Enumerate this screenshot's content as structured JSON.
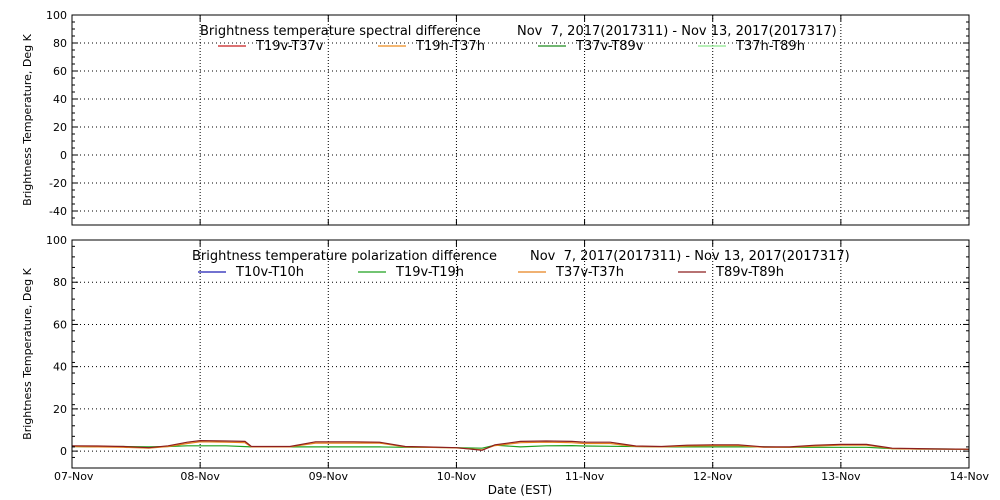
{
  "x_axis": {
    "label": "Date (EST)",
    "ticks": [
      "07-Nov",
      "08-Nov",
      "09-Nov",
      "10-Nov",
      "11-Nov",
      "12-Nov",
      "13-Nov",
      "14-Nov"
    ]
  },
  "chart_data": [
    {
      "id": "spectral",
      "type": "line",
      "title": "Brightness temperature spectral difference",
      "date_range": "Nov  7, 2017(2017311) - Nov 13, 2017(2017317)",
      "ylabel": "Brightness Temperature, Deg K",
      "ylim": [
        -50,
        100
      ],
      "yticks": [
        -40,
        -20,
        0,
        20,
        40,
        60,
        80,
        100
      ],
      "xlim": [
        0,
        7
      ],
      "grid": true,
      "legend_position": "top",
      "series": [
        {
          "name": "T19v-T37v",
          "color": "#c81e1e",
          "x": [],
          "y": []
        },
        {
          "name": "T19h-T37h",
          "color": "#ee8c1e",
          "x": [],
          "y": []
        },
        {
          "name": "T37v-T89v",
          "color": "#1e8c1e",
          "x": [],
          "y": []
        },
        {
          "name": "T37h-T89h",
          "color": "#8ce68c",
          "x": [],
          "y": []
        }
      ]
    },
    {
      "id": "polarization",
      "type": "line",
      "title": "Brightness temperature polarization difference",
      "date_range": "Nov  7, 2017(2017311) - Nov 13, 2017(2017317)",
      "ylabel": "Brightness Temperature, Deg K",
      "ylim": [
        -8,
        100
      ],
      "yticks": [
        0,
        20,
        40,
        60,
        80,
        100
      ],
      "xlim": [
        0,
        7
      ],
      "grid": true,
      "legend_position": "top",
      "series": [
        {
          "name": "T10v-T10h",
          "color": "#1e1eb4",
          "x": [],
          "y": []
        },
        {
          "name": "T19v-T19h",
          "color": "#1ea01e",
          "x": [
            0,
            0.2,
            0.4,
            0.6,
            0.75,
            0.9,
            1.0,
            1.2,
            1.4,
            1.55,
            1.7,
            1.9,
            2.0,
            2.2,
            2.4,
            2.6,
            2.75,
            3.0,
            3.2,
            3.3,
            3.5,
            3.7,
            3.9,
            4.0,
            4.2,
            4.4,
            4.6,
            4.8,
            5.0,
            5.2,
            5.4,
            5.6,
            5.8,
            6.0,
            6.2,
            6.4,
            6.6,
            6.8,
            7.0
          ],
          "y": [
            2.2,
            2.0,
            2.2,
            2.0,
            2.2,
            2.5,
            2.5,
            2.5,
            2.0,
            2.0,
            2.0,
            2.0,
            2.0,
            2.0,
            2.0,
            1.8,
            1.8,
            1.6,
            1.4,
            2.8,
            2.0,
            2.5,
            2.6,
            2.4,
            2.3,
            2.2,
            2.0,
            2.0,
            2.0,
            2.0,
            2.0,
            1.8,
            1.8,
            1.8,
            1.8,
            1.2,
            1.0,
            1.0,
            0.9
          ]
        },
        {
          "name": "T37v-T37h",
          "color": "#e6821e",
          "x": [
            0,
            0.2,
            0.4,
            0.6,
            0.75,
            0.9,
            1.0,
            1.2,
            1.35,
            1.4,
            1.55,
            1.7,
            1.9,
            2.0,
            2.2,
            2.4,
            2.6,
            2.75,
            3.0,
            3.2,
            3.3,
            3.5,
            3.7,
            3.9,
            4.0,
            4.2,
            4.4,
            4.6,
            4.8,
            5.0,
            5.2,
            5.4,
            5.6,
            5.8,
            6.0,
            6.2,
            6.4,
            6.6,
            6.8,
            7.0
          ],
          "y": [
            2.2,
            2.0,
            1.8,
            1.4,
            2.2,
            3.6,
            4.4,
            4.2,
            4.0,
            2.0,
            2.0,
            2.0,
            3.8,
            3.8,
            3.8,
            3.8,
            2.0,
            1.8,
            1.5,
            0.6,
            2.6,
            4.0,
            4.2,
            4.0,
            3.6,
            3.6,
            2.2,
            2.0,
            2.4,
            2.6,
            2.6,
            1.8,
            1.8,
            2.4,
            2.8,
            2.8,
            1.2,
            1.0,
            0.9,
            0.8
          ]
        },
        {
          "name": "T89v-T89h",
          "color": "#8c1e1e",
          "x": [
            0,
            0.2,
            0.4,
            0.6,
            0.75,
            0.9,
            1.0,
            1.2,
            1.35,
            1.4,
            1.55,
            1.7,
            1.9,
            2.0,
            2.2,
            2.4,
            2.6,
            2.75,
            3.0,
            3.2,
            3.3,
            3.5,
            3.7,
            3.9,
            4.0,
            4.2,
            4.4,
            4.6,
            4.8,
            5.0,
            5.2,
            5.4,
            5.6,
            5.8,
            6.0,
            6.2,
            6.4,
            6.6,
            6.8,
            7.0
          ],
          "y": [
            2.5,
            2.4,
            2.2,
            1.6,
            2.5,
            4.2,
            5.0,
            4.8,
            4.6,
            2.2,
            2.2,
            2.2,
            4.4,
            4.4,
            4.4,
            4.2,
            2.2,
            2.0,
            1.6,
            0.4,
            3.0,
            4.6,
            4.8,
            4.6,
            4.2,
            4.2,
            2.4,
            2.2,
            2.8,
            3.0,
            3.0,
            2.0,
            2.0,
            2.8,
            3.2,
            3.2,
            1.4,
            1.2,
            1.0,
            0.9
          ]
        }
      ]
    }
  ]
}
